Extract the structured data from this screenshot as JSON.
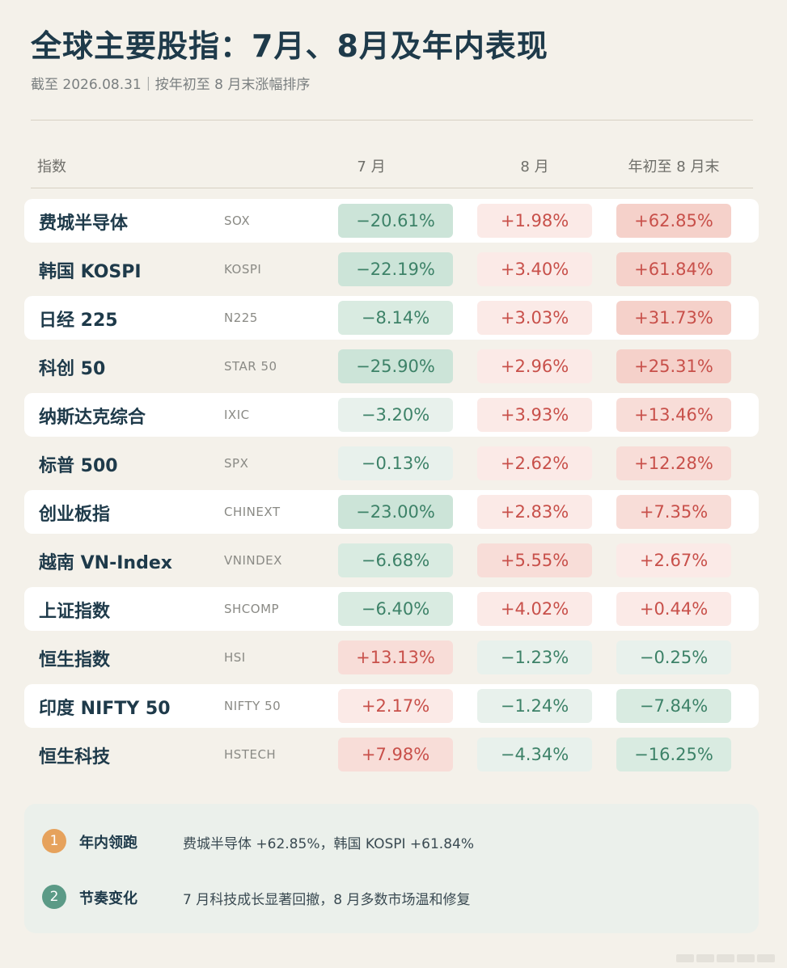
{
  "header": {
    "title": "全球主要股指：7月、8月及年内表现",
    "subtitle": "截至 2026.08.31｜按年初至 8 月末涨幅排序"
  },
  "columns": [
    "指数",
    "7 月",
    "8 月",
    "年初至 8 月末"
  ],
  "colors": {
    "background": "#f4f1ea",
    "positive_text": "#c8504a",
    "negative_text": "#3d8268",
    "title": "#1e3a4a",
    "badge_1": "#e6a25c",
    "badge_2": "#5b9a86"
  },
  "rows": [
    {
      "name": "费城半导体",
      "code": "SOX",
      "jul": "−20.61%",
      "aug": "+1.98%",
      "ytd": "+62.85%"
    },
    {
      "name": "韩国 KOSPI",
      "code": "KOSPI",
      "jul": "−22.19%",
      "aug": "+3.40%",
      "ytd": "+61.84%"
    },
    {
      "name": "日经 225",
      "code": "N225",
      "jul": "−8.14%",
      "aug": "+3.03%",
      "ytd": "+31.73%"
    },
    {
      "name": "科创 50",
      "code": "STAR 50",
      "jul": "−25.90%",
      "aug": "+2.96%",
      "ytd": "+25.31%"
    },
    {
      "name": "纳斯达克综合",
      "code": "IXIC",
      "jul": "−3.20%",
      "aug": "+3.93%",
      "ytd": "+13.46%"
    },
    {
      "name": "标普 500",
      "code": "SPX",
      "jul": "−0.13%",
      "aug": "+2.62%",
      "ytd": "+12.28%"
    },
    {
      "name": "创业板指",
      "code": "CHINEXT",
      "jul": "−23.00%",
      "aug": "+2.83%",
      "ytd": "+7.35%"
    },
    {
      "name": "越南 VN-Index",
      "code": "VNINDEX",
      "jul": "−6.68%",
      "aug": "+5.55%",
      "ytd": "+2.67%"
    },
    {
      "name": "上证指数",
      "code": "SHCOMP",
      "jul": "−6.40%",
      "aug": "+4.02%",
      "ytd": "+0.44%"
    },
    {
      "name": "恒生指数",
      "code": "HSI",
      "jul": "+13.13%",
      "aug": "−1.23%",
      "ytd": "−0.25%"
    },
    {
      "name": "印度 NIFTY 50",
      "code": "NIFTY 50",
      "jul": "+2.17%",
      "aug": "−1.24%",
      "ytd": "−7.84%"
    },
    {
      "name": "恒生科技",
      "code": "HSTECH",
      "jul": "+7.98%",
      "aug": "−4.34%",
      "ytd": "−16.25%"
    }
  ],
  "summary": [
    {
      "num": "1",
      "title": "年内领跑",
      "text": "费城半导体 +62.85%，韩国 KOSPI +61.84%"
    },
    {
      "num": "2",
      "title": "节奏变化",
      "text": "7 月科技成长显著回撤，8 月多数市场温和修复"
    }
  ]
}
